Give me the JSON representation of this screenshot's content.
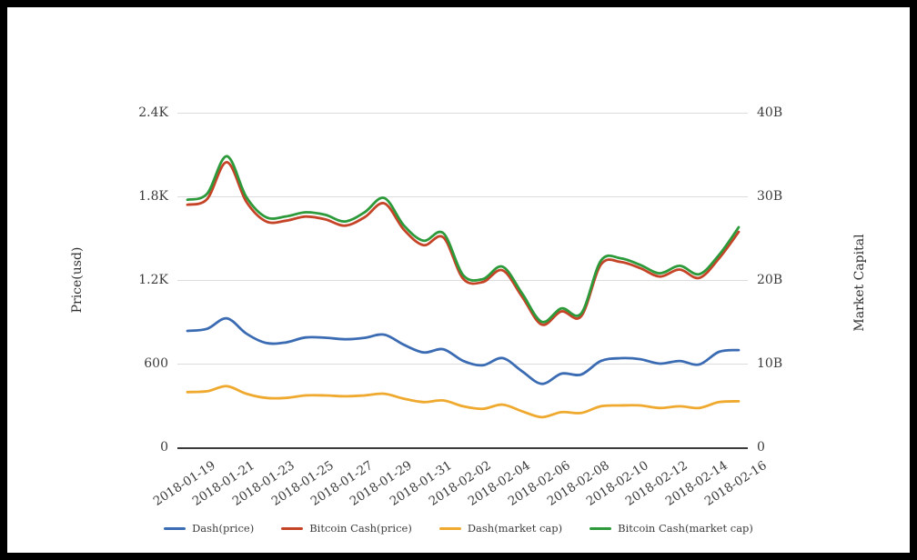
{
  "window": {
    "frame_color": "#000000",
    "canvas_color": "#ffffff"
  },
  "chart_data": {
    "type": "line",
    "title": "",
    "x": [
      "2018-01-19",
      "2018-01-20",
      "2018-01-21",
      "2018-01-22",
      "2018-01-23",
      "2018-01-24",
      "2018-01-25",
      "2018-01-26",
      "2018-01-27",
      "2018-01-28",
      "2018-01-29",
      "2018-01-30",
      "2018-01-31",
      "2018-02-01",
      "2018-02-02",
      "2018-02-03",
      "2018-02-04",
      "2018-02-05",
      "2018-02-06",
      "2018-02-07",
      "2018-02-08",
      "2018-02-09",
      "2018-02-10",
      "2018-02-11",
      "2018-02-12",
      "2018-02-13",
      "2018-02-14",
      "2018-02-15",
      "2018-02-16"
    ],
    "x_tick_labels": [
      "2018-01-19",
      "2018-01-21",
      "2018-01-23",
      "2018-01-25",
      "2018-01-27",
      "2018-01-29",
      "2018-01-31",
      "2018-02-02",
      "2018-02-04",
      "2018-02-06",
      "2018-02-08",
      "2018-02-10",
      "2018-02-12",
      "2018-02-14",
      "2018-02-16"
    ],
    "left_axis": {
      "title": "Price(usd)",
      "ticks": [
        "0",
        "600",
        "1.2K",
        "1.8K",
        "2.4K"
      ],
      "range": [
        0,
        2400
      ]
    },
    "right_axis": {
      "title": "Market Capital",
      "ticks": [
        "0",
        "10B",
        "20B",
        "30B",
        "40B"
      ],
      "range": [
        0,
        40
      ]
    },
    "grid": true,
    "legend_position": "bottom",
    "series": [
      {
        "name": "Dash(price)",
        "axis": "left",
        "color": "#3b6cb3",
        "values": [
          835,
          850,
          925,
          815,
          748,
          752,
          788,
          786,
          775,
          785,
          808,
          735,
          680,
          703,
          620,
          588,
          640,
          545,
          455,
          528,
          522,
          619,
          639,
          632,
          600,
          619,
          594,
          685,
          697
        ]
      },
      {
        "name": "Bitcoin Cash(price)",
        "axis": "left",
        "color": "#c54428",
        "values": [
          1740,
          1780,
          2045,
          1760,
          1620,
          1625,
          1655,
          1635,
          1590,
          1650,
          1750,
          1560,
          1450,
          1505,
          1210,
          1185,
          1270,
          1080,
          880,
          975,
          940,
          1310,
          1330,
          1285,
          1225,
          1275,
          1215,
          1355,
          1545
        ]
      },
      {
        "name": "Dash(market cap)",
        "axis": "right",
        "color": "#efa92e",
        "values": [
          6.6,
          6.7,
          7.3,
          6.4,
          5.9,
          5.9,
          6.2,
          6.2,
          6.1,
          6.2,
          6.4,
          5.8,
          5.4,
          5.6,
          4.9,
          4.6,
          5.1,
          4.3,
          3.6,
          4.2,
          4.1,
          4.9,
          5.0,
          5.0,
          4.7,
          4.9,
          4.7,
          5.4,
          5.5
        ]
      },
      {
        "name": "Bitcoin Cash(market cap)",
        "axis": "right",
        "color": "#2c9a3a",
        "values": [
          29.6,
          30.3,
          34.8,
          29.9,
          27.5,
          27.6,
          28.1,
          27.8,
          27.0,
          28.1,
          29.8,
          26.5,
          24.7,
          25.6,
          20.6,
          20.1,
          21.6,
          18.4,
          15.0,
          16.6,
          16.0,
          22.3,
          22.6,
          21.8,
          20.8,
          21.7,
          20.7,
          23.0,
          26.3
        ]
      }
    ]
  }
}
